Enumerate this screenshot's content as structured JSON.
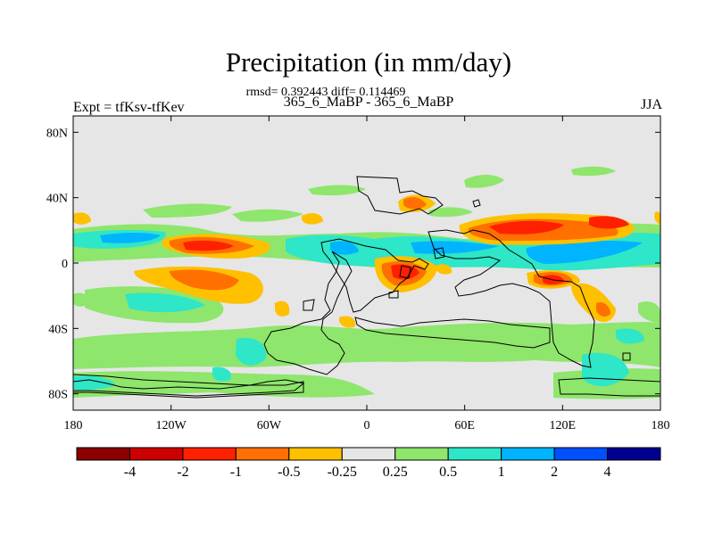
{
  "title": "Precipitation (in mm/day)",
  "stats_line": "rmsd= 0.392443 diff= 0.114469",
  "subtitle": "365_6_MaBP - 365_6_MaBP",
  "experiment_label": "Expt = tfKsv-tfKev",
  "season": "JJA",
  "axes": {
    "lat_ticks": [
      {
        "value": 80,
        "label": "80N"
      },
      {
        "value": 40,
        "label": "40N"
      },
      {
        "value": 0,
        "label": "0"
      },
      {
        "value": -40,
        "label": "40S"
      },
      {
        "value": -80,
        "label": "80S"
      }
    ],
    "lon_ticks": [
      {
        "value": -180,
        "label": "180"
      },
      {
        "value": -120,
        "label": "120W"
      },
      {
        "value": -60,
        "label": "60W"
      },
      {
        "value": 0,
        "label": "0"
      },
      {
        "value": 60,
        "label": "60E"
      },
      {
        "value": 120,
        "label": "120E"
      },
      {
        "value": 180,
        "label": "180"
      }
    ],
    "lat_range": [
      -90,
      90
    ],
    "lon_range": [
      -180,
      180
    ]
  },
  "colorbar": {
    "colors": [
      "#8b0000",
      "#cc0000",
      "#ff2000",
      "#ff7000",
      "#ffc000",
      "#e6e6e6",
      "#8ee66c",
      "#2ee6c8",
      "#00b4ff",
      "#0050ff",
      "#000090"
    ],
    "labels": [
      "-4",
      "-2",
      "-1",
      "-0.5",
      "-0.25",
      "0.25",
      "0.5",
      "1",
      "2",
      "4"
    ]
  },
  "colors": {
    "neutral": "#e6e6e6",
    "green": "#8ee66c",
    "cyan": "#2ee6c8",
    "blue": "#00b4ff",
    "yellow": "#ffc000",
    "orange": "#ff7000",
    "red": "#ff2000"
  }
}
